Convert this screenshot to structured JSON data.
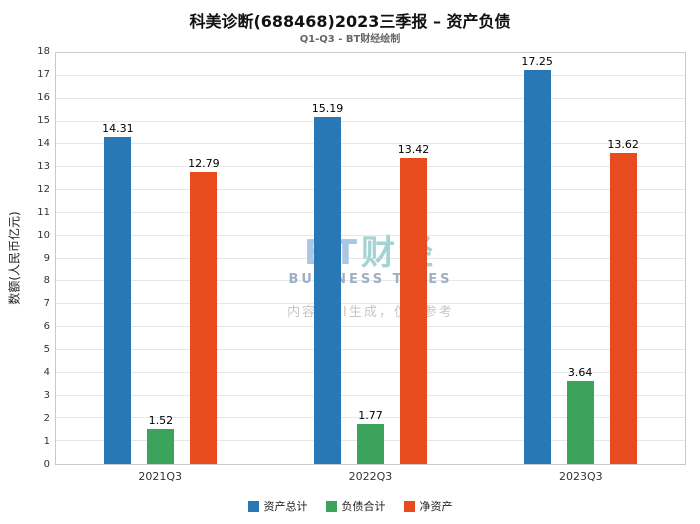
{
  "title": "科美诊断(688468)2023三季报 – 资产负债",
  "subtitle": "Q1-Q3 - BT财经绘制",
  "watermark": {
    "logo_bt": "BT",
    "logo_cjk": "财经",
    "logo_sub": "BUSINESS TIMES",
    "disclaimer": "内容由AI生成，仅供参考"
  },
  "chart_data": {
    "type": "bar",
    "title": "科美诊断(688468)2023三季报 – 资产负债",
    "subtitle": "Q1-Q3 - BT财经绘制",
    "categories": [
      "2021Q3",
      "2022Q3",
      "2023Q3"
    ],
    "series": [
      {
        "name": "资产总计",
        "color": "#2878b5",
        "values": [
          14.31,
          15.19,
          17.25
        ]
      },
      {
        "name": "负债合计",
        "color": "#3ba35b",
        "values": [
          1.52,
          1.77,
          3.64
        ]
      },
      {
        "name": "净资产",
        "color": "#e84c1e",
        "values": [
          12.79,
          13.42,
          13.62
        ]
      }
    ],
    "xlabel": "",
    "ylabel": "数额(人民币亿元)",
    "ylim": [
      0,
      18
    ],
    "ytick_step": 1,
    "grid": true,
    "legend_position": "bottom",
    "value_labels_shown": true
  }
}
